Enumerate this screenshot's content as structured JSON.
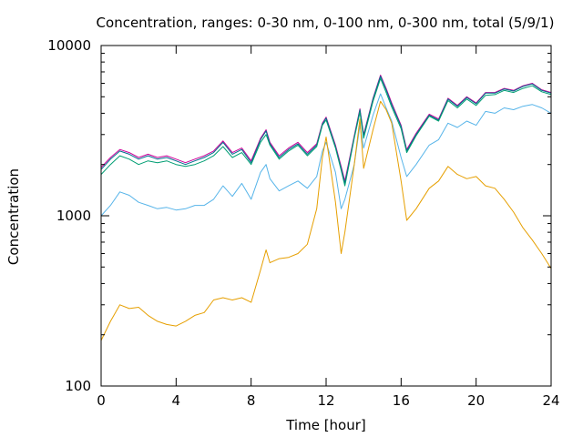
{
  "chart_data": {
    "type": "line",
    "title": "Concentration, ranges: 0-30 nm, 0-100 nm, 0-300 nm, total (5/9/1)",
    "xlabel": "Time [hour]",
    "ylabel": "Concentration",
    "xlim": [
      0,
      24
    ],
    "ylim": [
      100,
      10000
    ],
    "yscale": "log",
    "grid": false,
    "x_ticks": [
      0,
      4,
      8,
      12,
      16,
      20,
      24
    ],
    "x_tick_labels": [
      "0",
      "4",
      "8",
      "12",
      "16",
      "20",
      "24"
    ],
    "y_ticks": [
      100,
      1000,
      10000
    ],
    "y_tick_labels": [
      "100",
      "1000",
      "10000"
    ],
    "x": [
      0,
      0.5,
      1,
      1.5,
      2,
      2.5,
      3,
      3.5,
      4,
      4.5,
      5,
      5.5,
      6,
      6.5,
      7,
      7.5,
      8,
      8.5,
      8.8,
      9,
      9.5,
      10,
      10.5,
      11,
      11.5,
      11.8,
      12,
      12.5,
      12.8,
      13,
      13.5,
      13.8,
      14,
      14.5,
      14.9,
      15.2,
      15.5,
      16,
      16.3,
      16.8,
      17.5,
      18,
      18.5,
      19,
      19.5,
      20,
      20.5,
      21,
      21.5,
      22,
      22.5,
      23,
      23.5,
      24
    ],
    "series": [
      {
        "color": "#cc0099",
        "values": [
          1920,
          2200,
          2450,
          2350,
          2200,
          2300,
          2200,
          2250,
          2150,
          2050,
          2150,
          2250,
          2400,
          2750,
          2350,
          2500,
          2100,
          2850,
          3200,
          2700,
          2250,
          2500,
          2700,
          2350,
          2650,
          3500,
          3800,
          2600,
          1950,
          1600,
          2950,
          4250,
          3000,
          4900,
          6700,
          5600,
          4600,
          3400,
          2450,
          3050,
          3950,
          3700,
          4900,
          4450,
          5000,
          4600,
          5300,
          5300,
          5600,
          5450,
          5800,
          6000,
          5500,
          5300
        ]
      },
      {
        "color": "#006f8f",
        "values": [
          1870,
          2150,
          2400,
          2300,
          2150,
          2250,
          2150,
          2200,
          2100,
          2000,
          2100,
          2200,
          2350,
          2700,
          2300,
          2450,
          2050,
          2800,
          3150,
          2650,
          2200,
          2450,
          2650,
          2300,
          2600,
          3450,
          3750,
          2550,
          1900,
          1550,
          2900,
          4200,
          2950,
          4850,
          6600,
          5500,
          4500,
          3350,
          2400,
          3000,
          3900,
          3650,
          4850,
          4400,
          4950,
          4550,
          5250,
          5250,
          5550,
          5400,
          5750,
          5950,
          5450,
          5250
        ]
      },
      {
        "color": "#009e73",
        "values": [
          1750,
          2000,
          2250,
          2150,
          2000,
          2100,
          2050,
          2100,
          2000,
          1950,
          2000,
          2100,
          2250,
          2550,
          2200,
          2350,
          2000,
          2700,
          3000,
          2600,
          2150,
          2400,
          2600,
          2250,
          2550,
          3400,
          3650,
          2500,
          1850,
          1500,
          2850,
          4050,
          2850,
          4700,
          6400,
          5300,
          4350,
          3250,
          2350,
          2950,
          3850,
          3600,
          4750,
          4300,
          4850,
          4450,
          5100,
          5150,
          5450,
          5300,
          5600,
          5800,
          5350,
          5150
        ]
      },
      {
        "color": "#56b4e9",
        "values": [
          1000,
          1150,
          1380,
          1320,
          1200,
          1150,
          1100,
          1120,
          1080,
          1100,
          1150,
          1150,
          1250,
          1500,
          1300,
          1550,
          1250,
          1800,
          2000,
          1650,
          1400,
          1500,
          1600,
          1450,
          1700,
          2400,
          2700,
          1800,
          1100,
          1250,
          2000,
          3400,
          2500,
          3900,
          5200,
          4300,
          3600,
          2200,
          1700,
          2000,
          2600,
          2800,
          3500,
          3300,
          3600,
          3400,
          4100,
          4000,
          4300,
          4200,
          4400,
          4500,
          4300,
          4000
        ]
      },
      {
        "color": "#e69f00",
        "values": [
          185,
          240,
          300,
          285,
          290,
          260,
          240,
          230,
          225,
          240,
          260,
          270,
          320,
          330,
          320,
          330,
          310,
          480,
          630,
          530,
          560,
          570,
          600,
          680,
          1100,
          2200,
          2900,
          1200,
          600,
          800,
          2000,
          3700,
          1900,
          3200,
          4700,
          4200,
          3500,
          1600,
          940,
          1100,
          1450,
          1600,
          1950,
          1750,
          1650,
          1700,
          1500,
          1450,
          1250,
          1050,
          850,
          720,
          600,
          490
        ]
      }
    ]
  }
}
